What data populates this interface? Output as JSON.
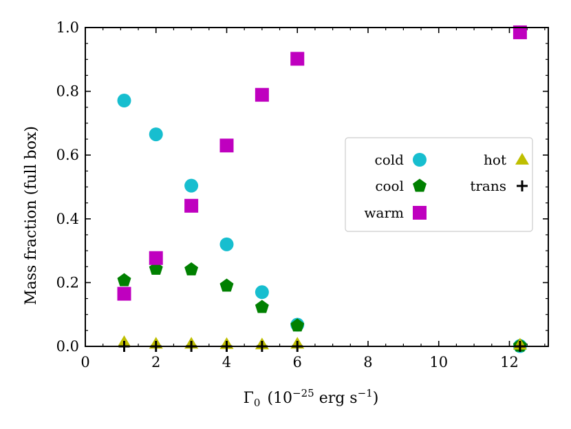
{
  "chart_data": {
    "type": "scatter",
    "title": "",
    "xlabel": "Γ₀ (10⁻²⁵ erg s⁻¹)",
    "xlabel_parts": {
      "gamma": "Γ",
      "sub": "0",
      "open": "(10",
      "exp": "−25",
      "unit": " erg s",
      "unit_exp": "−1",
      "close": ")"
    },
    "ylabel": "Mass fraction (full box)",
    "xlim": [
      0,
      13.1
    ],
    "ylim": [
      0,
      1.0
    ],
    "xticks": [
      0,
      2,
      4,
      6,
      8,
      10,
      12
    ],
    "xtick_labels": [
      "0",
      "2",
      "4",
      "6",
      "8",
      "10",
      "12"
    ],
    "yticks": [
      0.0,
      0.2,
      0.4,
      0.6,
      0.8,
      1.0
    ],
    "ytick_labels": [
      "0.0",
      "0.2",
      "0.4",
      "0.6",
      "0.8",
      "1.0"
    ],
    "x": [
      1.1,
      2.0,
      3.0,
      4.0,
      5.0,
      6.0,
      12.3
    ],
    "legend_location": "center-right",
    "series": [
      {
        "name": "cold",
        "marker": "circle",
        "color": "#17becf",
        "values": [
          0.771,
          0.665,
          0.504,
          0.32,
          0.17,
          0.068,
          0.001
        ]
      },
      {
        "name": "cool",
        "marker": "pentagon",
        "color": "#008000",
        "values": [
          0.207,
          0.243,
          0.241,
          0.19,
          0.123,
          0.065,
          0.002
        ]
      },
      {
        "name": "warm",
        "marker": "square",
        "color": "#bf00bf",
        "values": [
          0.165,
          0.277,
          0.441,
          0.63,
          0.789,
          0.902,
          0.985
        ]
      },
      {
        "name": "hot",
        "marker": "triangle",
        "color": "#bfbf00",
        "values": [
          0.013,
          0.008,
          0.008,
          0.007,
          0.006,
          0.008,
          0.005
        ]
      },
      {
        "name": "trans",
        "marker": "plus",
        "color": "#000000",
        "values": [
          0.0,
          0.0,
          0.0,
          0.0,
          0.0,
          0.0,
          0.0
        ]
      }
    ]
  }
}
